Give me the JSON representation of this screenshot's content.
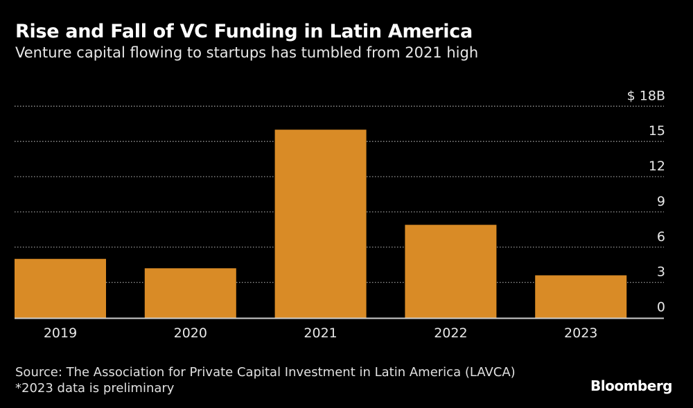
{
  "header": {
    "title": "Rise and Fall of VC Funding in Latin America",
    "subtitle": "Venture capital flowing to startups has tumbled from 2021 high"
  },
  "footer": {
    "source": "Source: The Association for Private Capital Investment in Latin America (LAVCA)",
    "note": "*2023 data is preliminary",
    "logo": "Bloomberg"
  },
  "chart_data": {
    "type": "bar",
    "title": "Rise and Fall of VC Funding in Latin America",
    "subtitle": "Venture capital flowing to startups has tumbled from 2021 high",
    "categories": [
      "2019",
      "2020",
      "2021",
      "2022",
      "2023"
    ],
    "values": [
      5.0,
      4.2,
      16.0,
      7.9,
      3.6
    ],
    "unit": "$ B",
    "ylim": [
      0,
      18
    ],
    "yticks": [
      0,
      3,
      6,
      9,
      12,
      15,
      18
    ],
    "ytick_labels": [
      "0",
      "3",
      "6",
      "9",
      "12",
      "15",
      "$ 18B"
    ],
    "y_axis_position": "right",
    "grid": true,
    "bar_color": "#d98b26",
    "background": "#000000"
  }
}
